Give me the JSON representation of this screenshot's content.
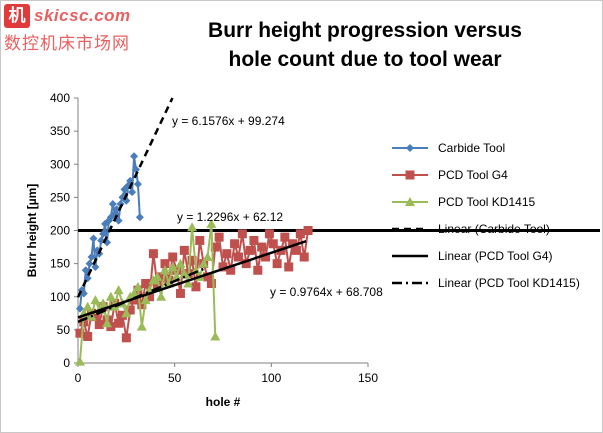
{
  "watermark": {
    "logo_char": "机",
    "site": "skicsc.com",
    "chinese": "数控机床市场网"
  },
  "chart_data": {
    "type": "scatter",
    "title": "Burr height progression versus hole count due to tool wear",
    "xlabel": "hole #",
    "ylabel": "Burr height [µm]",
    "xlim": [
      0,
      150
    ],
    "ylim": [
      0,
      400
    ],
    "xticks": [
      0,
      50,
      100,
      150
    ],
    "yticks": [
      0,
      50,
      100,
      150,
      200,
      250,
      300,
      350,
      400
    ],
    "grid": false,
    "legend_position": "right",
    "reference_line": {
      "y": 200,
      "color": "#000000"
    },
    "series": [
      {
        "name": "Carbide Tool",
        "marker": "diamond",
        "color": "#4a7ebb",
        "x": [
          1,
          2,
          3,
          4,
          5,
          6,
          7,
          8,
          9,
          10,
          11,
          12,
          13,
          14,
          15,
          16,
          17,
          18,
          19,
          20,
          21,
          22,
          23,
          24,
          25,
          26,
          27,
          28,
          29,
          30,
          31,
          32
        ],
        "y": [
          82,
          110,
          105,
          140,
          128,
          150,
          160,
          188,
          145,
          170,
          165,
          185,
          195,
          210,
          182,
          215,
          220,
          240,
          225,
          232,
          215,
          240,
          250,
          262,
          245,
          268,
          275,
          258,
          312,
          292,
          270,
          220
        ]
      },
      {
        "name": "PCD Tool G4",
        "marker": "square",
        "color": "#c0504d",
        "x": [
          1,
          3,
          5,
          7,
          9,
          11,
          13,
          15,
          17,
          19,
          21,
          23,
          25,
          27,
          29,
          31,
          33,
          35,
          37,
          39,
          41,
          43,
          45,
          47,
          49,
          51,
          53,
          55,
          57,
          59,
          61,
          63,
          65,
          67,
          69,
          71,
          73,
          75,
          77,
          79,
          81,
          83,
          85,
          87,
          89,
          91,
          93,
          95,
          97,
          99,
          101,
          103,
          105,
          107,
          109,
          111,
          113,
          115,
          117,
          119
        ],
        "y": [
          45,
          62,
          40,
          75,
          70,
          58,
          85,
          65,
          55,
          90,
          60,
          72,
          38,
          80,
          95,
          110,
          88,
          120,
          100,
          165,
          118,
          130,
          150,
          125,
          160,
          140,
          105,
          170,
          135,
          155,
          115,
          185,
          150,
          130,
          120,
          175,
          190,
          145,
          165,
          140,
          180,
          160,
          195,
          150,
          170,
          185,
          140,
          175,
          160,
          195,
          180,
          150,
          170,
          190,
          145,
          180,
          170,
          195,
          160,
          200
        ]
      },
      {
        "name": "PCD Tool KD1415",
        "marker": "triangle",
        "color": "#9bbb59",
        "x": [
          1,
          3,
          5,
          7,
          9,
          11,
          13,
          15,
          17,
          19,
          21,
          23,
          25,
          27,
          29,
          31,
          33,
          35,
          37,
          39,
          41,
          43,
          45,
          47,
          49,
          51,
          53,
          55,
          57,
          59,
          61,
          63,
          65,
          67,
          69,
          71
        ],
        "y": [
          2,
          75,
          85,
          70,
          95,
          80,
          90,
          60,
          100,
          85,
          110,
          90,
          75,
          100,
          105,
          115,
          55,
          95,
          110,
          125,
          130,
          100,
          140,
          120,
          145,
          130,
          150,
          135,
          120,
          205,
          140,
          130,
          150,
          160,
          210,
          40
        ]
      }
    ],
    "trendlines": [
      {
        "name": "Linear (Carbide Tool)",
        "slope": 6.1576,
        "intercept": 99.274,
        "label": "y = 6.1576x + 99.274",
        "style": "dashed",
        "x_range": [
          0,
          50
        ]
      },
      {
        "name": "Linear (PCD Tool G4)",
        "slope": 0.9764,
        "intercept": 68.708,
        "label": "y = 0.9764x + 68.708",
        "style": "solid",
        "x_range": [
          0,
          118
        ]
      },
      {
        "name": "Linear (PCD Tool KD1415)",
        "slope": 1.2296,
        "intercept": 62.12,
        "label": "y = 1.2296x + 62.12",
        "style": "dashdot",
        "x_range": [
          0,
          65
        ]
      }
    ]
  }
}
